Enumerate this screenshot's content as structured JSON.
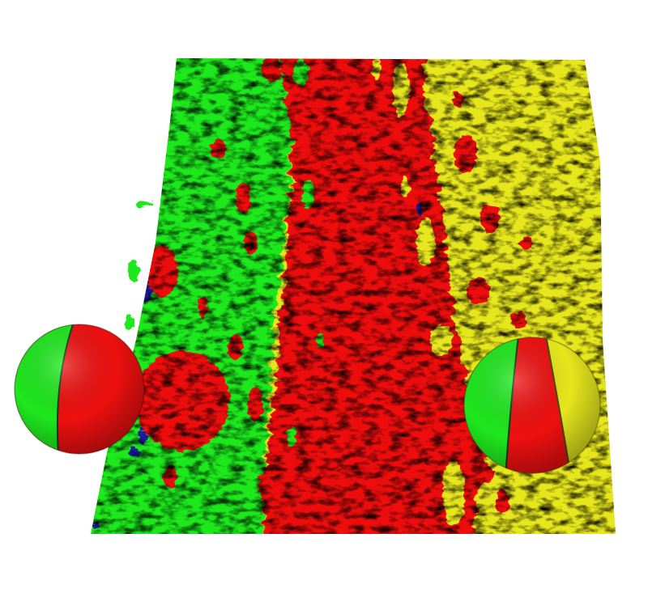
{
  "scene": {
    "background": "#ffffff",
    "colors": {
      "green": "#1ee81e",
      "green_dark": "#129a12",
      "red": "#ee1010",
      "red_dark": "#a80808",
      "yellow": "#e6e61c",
      "yellow_dark": "#a8a812",
      "blue": "#1a1aa0"
    },
    "objects": [
      {
        "name": "trunk-surface",
        "kind": "segmented-cylinder-surface"
      },
      {
        "name": "sphere-left",
        "kind": "segmented-sphere",
        "segments": [
          "green",
          "red"
        ]
      },
      {
        "name": "sphere-right",
        "kind": "segmented-sphere",
        "segments": [
          "green",
          "red",
          "yellow"
        ]
      }
    ]
  }
}
